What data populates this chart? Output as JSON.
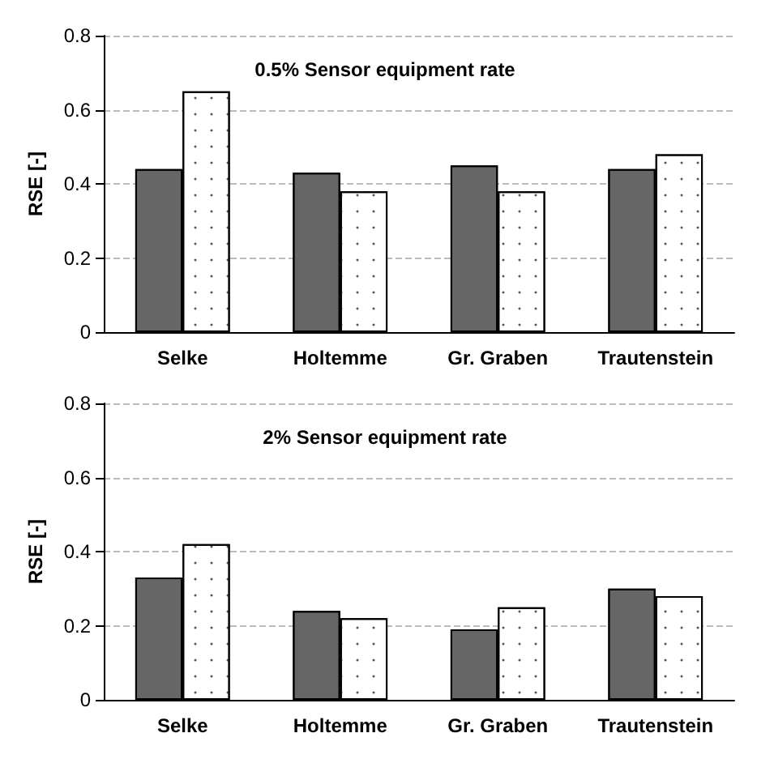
{
  "chart_data": [
    {
      "type": "bar",
      "title": "0.5% Sensor equipment rate",
      "ylabel": "RSE [-]",
      "categories": [
        "Selke",
        "Holtemme",
        "Gr. Graben",
        "Trautenstein"
      ],
      "series": [
        {
          "color": "#666666",
          "values": [
            0.44,
            0.43,
            0.45,
            0.44
          ]
        },
        {
          "color": "#ffffff",
          "values": [
            0.65,
            0.38,
            0.38,
            0.48
          ]
        }
      ],
      "ylim": [
        0,
        0.8
      ],
      "yticks": [
        0,
        0.2,
        0.4,
        0.6,
        0.8
      ],
      "grid": "y"
    },
    {
      "type": "bar",
      "title": "2% Sensor equipment rate",
      "ylabel": "RSE [-]",
      "categories": [
        "Selke",
        "Holtemme",
        "Gr. Graben",
        "Trautenstein"
      ],
      "series": [
        {
          "color": "#666666",
          "values": [
            0.33,
            0.24,
            0.19,
            0.3
          ]
        },
        {
          "color": "#ffffff",
          "values": [
            0.42,
            0.22,
            0.25,
            0.28
          ]
        }
      ],
      "ylim": [
        0,
        0.8
      ],
      "yticks": [
        0,
        0.2,
        0.4,
        0.6,
        0.8
      ],
      "grid": "y"
    }
  ]
}
